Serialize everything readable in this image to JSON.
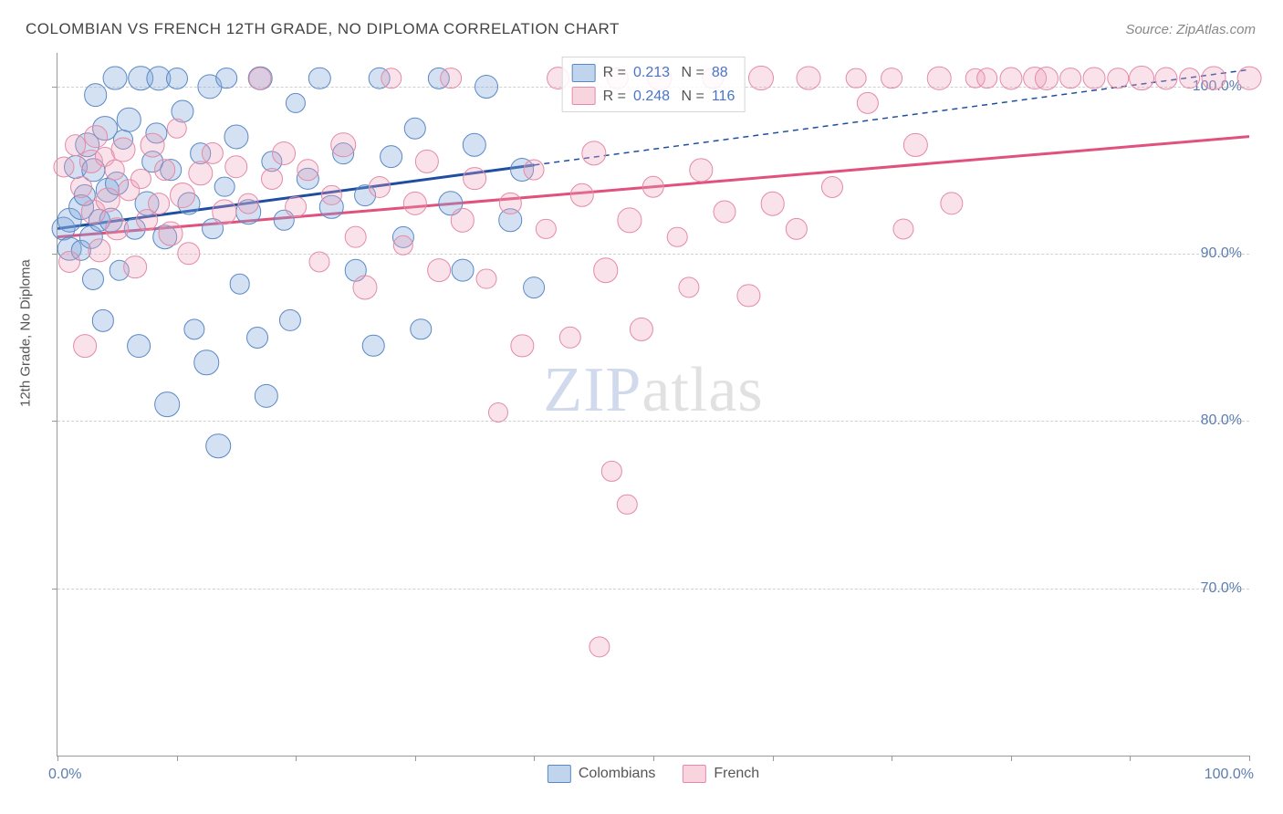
{
  "title": "COLOMBIAN VS FRENCH 12TH GRADE, NO DIPLOMA CORRELATION CHART",
  "source": "Source: ZipAtlas.com",
  "ylabel": "12th Grade, No Diploma",
  "watermark_zip": "ZIP",
  "watermark_atlas": "atlas",
  "chart": {
    "type": "scatter",
    "xlim": [
      0,
      100
    ],
    "ylim": [
      60,
      102
    ],
    "x_ticks": [
      0,
      10,
      20,
      30,
      40,
      50,
      60,
      70,
      80,
      90,
      100
    ],
    "y_ticks": [
      70,
      80,
      90,
      100
    ],
    "y_tick_labels": [
      "70.0%",
      "80.0%",
      "90.0%",
      "100.0%"
    ],
    "x_tick_left": "0.0%",
    "x_tick_right": "100.0%",
    "background_color": "#ffffff",
    "grid_color": "#d0d0d0",
    "colors": {
      "blue_fill": "rgba(130,170,220,0.35)",
      "blue_stroke": "#5b88c4",
      "pink_fill": "rgba(240,160,185,0.30)",
      "pink_stroke": "#e48aa8",
      "axis_text": "#5b7db1"
    },
    "marker_radius": 10,
    "series": [
      {
        "name": "Colombians",
        "color_key": "blue",
        "R": "0.213",
        "N": "88",
        "trend": {
          "x1": 0,
          "y1": 91.5,
          "x2": 100,
          "y2": 101.0,
          "solid_until_x": 40,
          "color": "#1f4ea1",
          "width": 3
        },
        "points": [
          [
            0.5,
            91.5
          ],
          [
            1,
            92
          ],
          [
            1,
            90.3
          ],
          [
            1.5,
            95.2
          ],
          [
            2,
            92.8
          ],
          [
            2,
            90.2
          ],
          [
            2.3,
            93.5
          ],
          [
            2.5,
            96.5
          ],
          [
            2.8,
            91.0
          ],
          [
            3,
            95
          ],
          [
            3,
            88.5
          ],
          [
            3.2,
            99.5
          ],
          [
            3.5,
            92
          ],
          [
            3.8,
            86
          ],
          [
            4,
            97.5
          ],
          [
            4.2,
            93.8
          ],
          [
            4.5,
            92
          ],
          [
            4.8,
            100.5
          ],
          [
            5,
            94.2
          ],
          [
            5.2,
            89
          ],
          [
            5.5,
            96.8
          ],
          [
            6,
            98
          ],
          [
            6.5,
            91.5
          ],
          [
            6.8,
            84.5
          ],
          [
            7,
            100.5
          ],
          [
            7.5,
            93
          ],
          [
            8,
            95.5
          ],
          [
            8.3,
            97.2
          ],
          [
            8.5,
            100.5
          ],
          [
            9,
            91
          ],
          [
            9.2,
            81
          ],
          [
            9.5,
            95
          ],
          [
            10,
            100.5
          ],
          [
            10.5,
            98.5
          ],
          [
            11,
            93
          ],
          [
            11.5,
            85.5
          ],
          [
            12,
            96
          ],
          [
            12.5,
            83.5
          ],
          [
            12.8,
            100
          ],
          [
            13,
            91.5
          ],
          [
            13.5,
            78.5
          ],
          [
            14,
            94
          ],
          [
            14.2,
            100.5
          ],
          [
            15,
            97
          ],
          [
            15.3,
            88.2
          ],
          [
            16,
            92.5
          ],
          [
            16.8,
            85
          ],
          [
            17,
            100.5
          ],
          [
            17.5,
            81.5
          ],
          [
            18,
            95.5
          ],
          [
            19,
            92
          ],
          [
            19.5,
            86
          ],
          [
            20,
            99
          ],
          [
            21,
            94.5
          ],
          [
            22,
            100.5
          ],
          [
            23,
            92.8
          ],
          [
            24,
            96
          ],
          [
            25,
            89
          ],
          [
            25.8,
            93.5
          ],
          [
            26.5,
            84.5
          ],
          [
            27,
            100.5
          ],
          [
            28,
            95.8
          ],
          [
            29,
            91
          ],
          [
            30,
            97.5
          ],
          [
            30.5,
            85.5
          ],
          [
            32,
            100.5
          ],
          [
            33,
            93
          ],
          [
            34,
            89
          ],
          [
            35,
            96.5
          ],
          [
            36,
            100
          ],
          [
            38,
            92
          ],
          [
            39,
            95
          ],
          [
            40,
            88
          ]
        ]
      },
      {
        "name": "French",
        "color_key": "pink",
        "R": "0.248",
        "N": "116",
        "trend": {
          "x1": 0,
          "y1": 91.0,
          "x2": 100,
          "y2": 97.0,
          "solid_until_x": 100,
          "color": "#e0527d",
          "width": 3
        },
        "points": [
          [
            0.5,
            95.2
          ],
          [
            1,
            89.5
          ],
          [
            1.5,
            96.5
          ],
          [
            2,
            94.0
          ],
          [
            2.3,
            84.5
          ],
          [
            2.8,
            95.5
          ],
          [
            3,
            92.5
          ],
          [
            3.2,
            97
          ],
          [
            3.5,
            90.2
          ],
          [
            4,
            95.8
          ],
          [
            4.2,
            93.2
          ],
          [
            4.8,
            95
          ],
          [
            5,
            91.5
          ],
          [
            5.5,
            96.2
          ],
          [
            6,
            93.8
          ],
          [
            6.5,
            89.2
          ],
          [
            7,
            94.5
          ],
          [
            7.5,
            92
          ],
          [
            8,
            96.5
          ],
          [
            8.5,
            93
          ],
          [
            9,
            95
          ],
          [
            9.5,
            91.2
          ],
          [
            10,
            97.5
          ],
          [
            10.5,
            93.5
          ],
          [
            11,
            90
          ],
          [
            12,
            94.8
          ],
          [
            13,
            96
          ],
          [
            14,
            92.5
          ],
          [
            15,
            95.2
          ],
          [
            16,
            93
          ],
          [
            17,
            100.5
          ],
          [
            18,
            94.5
          ],
          [
            19,
            96
          ],
          [
            20,
            92.8
          ],
          [
            21,
            95
          ],
          [
            22,
            89.5
          ],
          [
            23,
            93.5
          ],
          [
            24,
            96.5
          ],
          [
            25,
            91
          ],
          [
            25.8,
            88
          ],
          [
            27,
            94
          ],
          [
            28,
            100.5
          ],
          [
            29,
            90.5
          ],
          [
            30,
            93
          ],
          [
            31,
            95.5
          ],
          [
            32,
            89
          ],
          [
            33,
            100.5
          ],
          [
            34,
            92
          ],
          [
            35,
            94.5
          ],
          [
            36,
            88.5
          ],
          [
            37,
            80.5
          ],
          [
            38,
            93
          ],
          [
            39,
            84.5
          ],
          [
            40,
            95
          ],
          [
            41,
            91.5
          ],
          [
            42,
            100.5
          ],
          [
            43,
            85
          ],
          [
            44,
            93.5
          ],
          [
            45,
            96
          ],
          [
            45.5,
            66.5
          ],
          [
            46,
            89
          ],
          [
            46.5,
            77
          ],
          [
            47,
            100.5
          ],
          [
            47.8,
            75
          ],
          [
            48,
            92
          ],
          [
            49,
            85.5
          ],
          [
            50,
            94
          ],
          [
            50.5,
            100.5
          ],
          [
            52,
            91
          ],
          [
            53,
            88
          ],
          [
            54,
            95
          ],
          [
            55,
            100.5
          ],
          [
            56,
            92.5
          ],
          [
            58,
            87.5
          ],
          [
            59,
            100.5
          ],
          [
            60,
            93
          ],
          [
            62,
            91.5
          ],
          [
            63,
            100.5
          ],
          [
            65,
            94
          ],
          [
            67,
            100.5
          ],
          [
            68,
            99
          ],
          [
            70,
            100.5
          ],
          [
            71,
            91.5
          ],
          [
            72,
            96.5
          ],
          [
            74,
            100.5
          ],
          [
            75,
            93
          ],
          [
            77,
            100.5
          ],
          [
            78,
            100.5
          ],
          [
            80,
            100.5
          ],
          [
            82,
            100.5
          ],
          [
            83,
            100.5
          ],
          [
            85,
            100.5
          ],
          [
            87,
            100.5
          ],
          [
            89,
            100.5
          ],
          [
            91,
            100.5
          ],
          [
            93,
            100.5
          ],
          [
            95,
            100.5
          ],
          [
            97,
            100.5
          ],
          [
            100,
            100.5
          ]
        ]
      }
    ]
  },
  "bottom_legend": [
    {
      "label": "Colombians",
      "swatch": "blue"
    },
    {
      "label": "French",
      "swatch": "pink"
    }
  ]
}
